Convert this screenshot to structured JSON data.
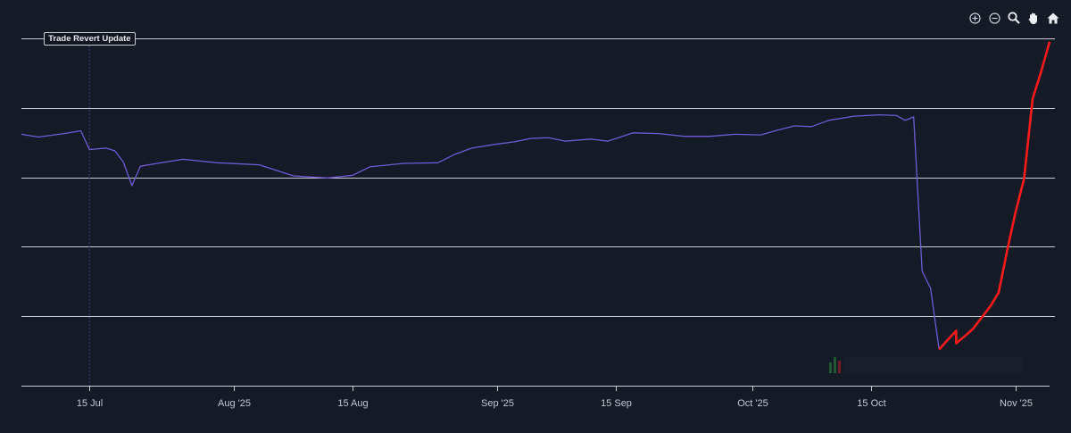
{
  "toolbar": {
    "icons": [
      "zoom-in-icon",
      "zoom-out-icon",
      "magnifier-icon",
      "pan-hand-icon",
      "home-icon"
    ]
  },
  "annotation": {
    "label": "Trade Revert Update",
    "date": "2025-07-15"
  },
  "colors": {
    "background": "#151a27",
    "gridline": "#c9ccd4",
    "series_main": "#6f5bd6",
    "series_recent": "#ff1a1a",
    "marker_line": "#3d4670"
  },
  "chart_data": {
    "type": "line",
    "title": "",
    "xlabel": "",
    "ylabel": "",
    "x_tick_labels": [
      {
        "label": "15 Jul",
        "date": "2025-07-15"
      },
      {
        "label": "Aug '25",
        "date": "2025-08-01"
      },
      {
        "label": "15 Aug",
        "date": "2025-08-15"
      },
      {
        "label": "Sep '25",
        "date": "2025-09-01"
      },
      {
        "label": "15 Sep",
        "date": "2025-09-15"
      },
      {
        "label": "Oct '25",
        "date": "2025-10-01"
      },
      {
        "label": "15 Oct",
        "date": "2025-10-15"
      },
      {
        "label": "Nov '25",
        "date": "2025-11-01"
      }
    ],
    "xlim": [
      "2025-07-07",
      "2025-11-05"
    ],
    "ylim": [
      0,
      5
    ],
    "gridlines": [
      1,
      2,
      3,
      4,
      5
    ],
    "y_tick_labels_visible": false,
    "series": [
      {
        "color": "#6f5bd6",
        "points": [
          [
            "2025-07-07",
            3.62
          ],
          [
            "2025-07-09",
            3.58
          ],
          [
            "2025-07-12",
            3.63
          ],
          [
            "2025-07-14",
            3.67
          ],
          [
            "2025-07-15",
            3.4
          ],
          [
            "2025-07-17",
            3.42
          ],
          [
            "2025-07-18",
            3.38
          ],
          [
            "2025-07-19",
            3.22
          ],
          [
            "2025-07-20",
            2.88
          ],
          [
            "2025-07-21",
            3.16
          ],
          [
            "2025-07-23",
            3.2
          ],
          [
            "2025-07-26",
            3.26
          ],
          [
            "2025-07-30",
            3.21
          ],
          [
            "2025-08-04",
            3.18
          ],
          [
            "2025-08-08",
            3.02
          ],
          [
            "2025-08-12",
            2.99
          ],
          [
            "2025-08-15",
            3.03
          ],
          [
            "2025-08-17",
            3.15
          ],
          [
            "2025-08-21",
            3.2
          ],
          [
            "2025-08-25",
            3.21
          ],
          [
            "2025-08-27",
            3.33
          ],
          [
            "2025-08-29",
            3.42
          ],
          [
            "2025-09-01",
            3.48
          ],
          [
            "2025-09-03",
            3.51
          ],
          [
            "2025-09-05",
            3.56
          ],
          [
            "2025-09-07",
            3.57
          ],
          [
            "2025-09-09",
            3.52
          ],
          [
            "2025-09-12",
            3.55
          ],
          [
            "2025-09-14",
            3.52
          ],
          [
            "2025-09-17",
            3.64
          ],
          [
            "2025-09-20",
            3.63
          ],
          [
            "2025-09-23",
            3.59
          ],
          [
            "2025-09-26",
            3.59
          ],
          [
            "2025-09-29",
            3.62
          ],
          [
            "2025-10-02",
            3.61
          ],
          [
            "2025-10-04",
            3.68
          ],
          [
            "2025-10-06",
            3.74
          ],
          [
            "2025-10-08",
            3.73
          ],
          [
            "2025-10-10",
            3.82
          ],
          [
            "2025-10-13",
            3.88
          ],
          [
            "2025-10-16",
            3.9
          ],
          [
            "2025-10-18",
            3.89
          ],
          [
            "2025-10-19",
            3.82
          ],
          [
            "2025-10-20",
            3.87
          ],
          [
            "2025-10-21",
            1.65
          ],
          [
            "2025-10-22",
            1.4
          ],
          [
            "2025-10-23",
            0.52
          ]
        ]
      },
      {
        "color": "#ff1a1a",
        "points": [
          [
            "2025-10-23",
            0.52
          ],
          [
            "2025-10-24",
            0.66
          ],
          [
            "2025-10-25",
            0.79
          ],
          [
            "2025-10-25",
            0.61
          ],
          [
            "2025-10-26",
            0.71
          ],
          [
            "2025-10-27",
            0.82
          ],
          [
            "2025-10-28",
            0.98
          ],
          [
            "2025-10-29",
            1.14
          ],
          [
            "2025-10-30",
            1.34
          ],
          [
            "2025-10-31",
            1.94
          ],
          [
            "2025-11-01",
            2.5
          ],
          [
            "2025-11-02",
            2.98
          ],
          [
            "2025-11-03",
            4.13
          ],
          [
            "2025-11-04",
            4.52
          ],
          [
            "2025-11-05",
            4.95
          ]
        ]
      }
    ]
  }
}
